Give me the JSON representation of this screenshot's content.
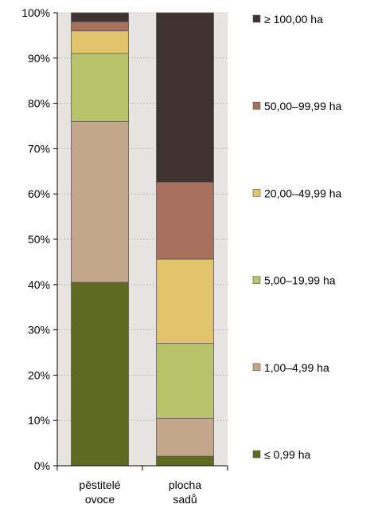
{
  "chart_data": {
    "type": "bar",
    "stacked": true,
    "orientation": "vertical",
    "categories": [
      [
        "pěstitelé",
        "ovoce"
      ],
      [
        "plocha",
        "sadů"
      ]
    ],
    "ylim": [
      0,
      100
    ],
    "yticks": [
      "0%",
      "10%",
      "20%",
      "30%",
      "40%",
      "50%",
      "60%",
      "70%",
      "80%",
      "90%",
      "100%"
    ],
    "series": [
      {
        "name": "≤ 0,99 ha",
        "color": "#5e6a1f",
        "values": [
          40.5,
          2.1
        ]
      },
      {
        "name": "1,00–4,99 ha",
        "color": "#c4a68a",
        "values": [
          35.5,
          8.4
        ]
      },
      {
        "name": "5,00–19,99 ha",
        "color": "#b9c46a",
        "values": [
          15.0,
          16.5
        ]
      },
      {
        "name": "20,00–49,99 ha",
        "color": "#e2c46a",
        "values": [
          5.0,
          18.6
        ]
      },
      {
        "name": "50,00–99,99 ha",
        "color": "#a8705e",
        "values": [
          2.0,
          17.0
        ]
      },
      {
        "name": "≥ 100,00 ha",
        "color": "#3f3230",
        "values": [
          2.0,
          37.4
        ]
      }
    ],
    "legend_position": "right",
    "grid": true,
    "background_color": "#e8e4e1",
    "axis_color": "#000000"
  }
}
